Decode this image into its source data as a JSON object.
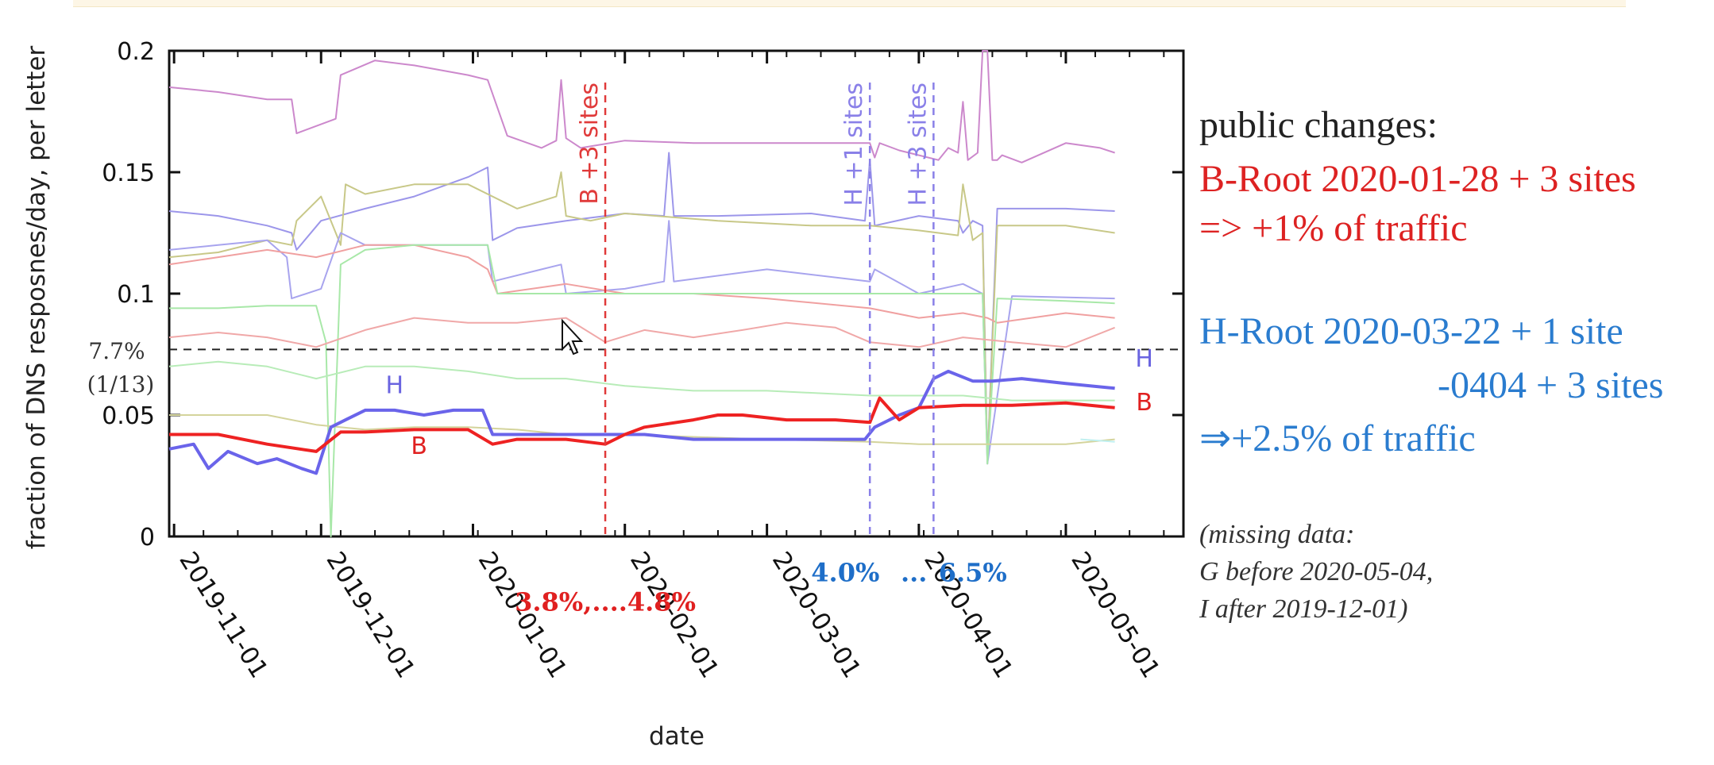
{
  "chart_data": {
    "type": "line",
    "ylabel": "fraction of DNS resposnes/day, per letter",
    "xlabel": "date",
    "ylim": [
      0,
      0.2
    ],
    "yticks": [
      {
        "value": 0,
        "label": "0"
      },
      {
        "value": 0.05,
        "label": "0.05"
      },
      {
        "value": 0.1,
        "label": "0.1"
      },
      {
        "value": 0.15,
        "label": "0.15"
      },
      {
        "value": 0.2,
        "label": "0.2"
      }
    ],
    "xlim": [
      "2019-10-31",
      "2020-05-25"
    ],
    "xticks": [
      "2019-11-01",
      "2019-12-01",
      "2020-01-01",
      "2020-02-01",
      "2020-03-01",
      "2020-04-01",
      "2020-05-01"
    ],
    "grid": false,
    "reference_line": {
      "value": 0.077,
      "label_top": "7.7%",
      "label_bottom": "(1/13)"
    },
    "events": [
      {
        "date": "2020-01-28",
        "label": "B +3 sites",
        "color": "#e03a3a"
      },
      {
        "date": "2020-03-22",
        "label": "H +1 sites",
        "color": "#8a80e8"
      },
      {
        "date": "2020-04-04",
        "label": "H +3 sites",
        "color": "#8a80e8"
      }
    ],
    "annotations": [
      {
        "text": "3.8%,....4.8%",
        "color": "#e02020",
        "date": "2020-01-28",
        "y": -0.0305
      },
      {
        "text": "4.0%",
        "color": "#1e6ec8",
        "date": "2020-03-17",
        "y": -0.0185
      },
      {
        "text": "...",
        "color": "#1e6ec8",
        "date": "2020-03-31",
        "y": -0.0185
      },
      {
        "text": "6.5%",
        "color": "#1e6ec8",
        "date": "2020-04-12",
        "y": -0.0185
      }
    ],
    "series_labels": [
      {
        "text": "H",
        "color": "#6a64e0",
        "date": "2019-12-16",
        "y": 0.059
      },
      {
        "text": "B",
        "color": "#e02020",
        "date": "2019-12-21",
        "y": 0.034
      },
      {
        "text": "H",
        "color": "#6a64e0",
        "date": "2020-05-17",
        "y": 0.07
      },
      {
        "text": "B",
        "color": "#e02020",
        "date": "2020-05-17",
        "y": 0.052
      }
    ],
    "series": [
      {
        "color": "#cc88cc",
        "width": 2,
        "x": [
          "2019-10-31",
          "2019-11-10",
          "2019-11-20",
          "2019-11-25",
          "2019-11-26",
          "2019-12-04",
          "2019-12-05",
          "2019-12-12",
          "2019-12-20",
          "2019-12-31",
          "2020-01-04",
          "2020-01-08",
          "2020-01-15",
          "2020-01-18",
          "2020-01-19",
          "2020-01-20",
          "2020-01-23",
          "2020-02-01",
          "2020-02-15",
          "2020-03-01",
          "2020-03-22",
          "2020-03-23",
          "2020-03-24",
          "2020-03-28",
          "2020-04-05",
          "2020-04-07",
          "2020-04-09",
          "2020-04-10",
          "2020-04-11",
          "2020-04-13",
          "2020-04-14",
          "2020-04-15",
          "2020-04-16",
          "2020-04-17",
          "2020-04-18",
          "2020-04-22",
          "2020-05-01",
          "2020-05-08",
          "2020-05-11"
        ],
        "y": [
          0.185,
          0.183,
          0.18,
          0.18,
          0.166,
          0.172,
          0.19,
          0.196,
          0.194,
          0.19,
          0.188,
          0.165,
          0.16,
          0.163,
          0.188,
          0.164,
          0.16,
          0.163,
          0.162,
          0.162,
          0.162,
          0.156,
          0.162,
          0.159,
          0.155,
          0.16,
          0.158,
          0.179,
          0.155,
          0.158,
          0.2,
          0.2,
          0.155,
          0.155,
          0.157,
          0.154,
          0.162,
          0.16,
          0.158
        ]
      },
      {
        "color": "#9c96ea",
        "width": 2,
        "x": [
          "2019-10-31",
          "2019-11-10",
          "2019-11-20",
          "2019-11-25",
          "2019-11-26",
          "2019-12-01",
          "2019-12-10",
          "2019-12-20",
          "2019-12-31",
          "2020-01-04",
          "2020-01-05",
          "2020-01-10",
          "2020-01-20",
          "2020-02-01",
          "2020-02-09",
          "2020-02-10",
          "2020-02-11",
          "2020-02-20",
          "2020-03-10",
          "2020-03-21",
          "2020-03-22",
          "2020-03-23",
          "2020-04-01",
          "2020-04-09",
          "2020-04-10",
          "2020-04-12",
          "2020-04-14",
          "2020-04-15",
          "2020-04-17",
          "2020-05-01",
          "2020-05-11"
        ],
        "y": [
          0.134,
          0.132,
          0.128,
          0.125,
          0.118,
          0.13,
          0.135,
          0.14,
          0.148,
          0.152,
          0.122,
          0.127,
          0.13,
          0.133,
          0.132,
          0.158,
          0.132,
          0.132,
          0.133,
          0.13,
          0.155,
          0.128,
          0.132,
          0.13,
          0.125,
          0.13,
          0.128,
          0.03,
          0.135,
          0.135,
          0.134
        ]
      },
      {
        "color": "#c8c888",
        "width": 2,
        "x": [
          "2019-10-31",
          "2019-11-10",
          "2019-11-20",
          "2019-11-25",
          "2019-11-26",
          "2019-12-01",
          "2019-12-05",
          "2019-12-06",
          "2019-12-10",
          "2019-12-20",
          "2019-12-31",
          "2020-01-10",
          "2020-01-18",
          "2020-01-19",
          "2020-01-20",
          "2020-01-25",
          "2020-02-01",
          "2020-02-20",
          "2020-03-10",
          "2020-03-22",
          "2020-04-01",
          "2020-04-09",
          "2020-04-10",
          "2020-04-12",
          "2020-04-14",
          "2020-04-15",
          "2020-04-17",
          "2020-05-01",
          "2020-05-11"
        ],
        "y": [
          0.115,
          0.117,
          0.122,
          0.12,
          0.13,
          0.14,
          0.12,
          0.145,
          0.141,
          0.145,
          0.145,
          0.135,
          0.14,
          0.15,
          0.132,
          0.13,
          0.133,
          0.13,
          0.128,
          0.128,
          0.126,
          0.124,
          0.145,
          0.122,
          0.125,
          0.03,
          0.128,
          0.128,
          0.125
        ]
      },
      {
        "color": "#a8a4ee",
        "width": 2,
        "x": [
          "2019-10-31",
          "2019-11-10",
          "2019-11-20",
          "2019-11-24",
          "2019-11-25",
          "2019-12-01",
          "2019-12-05",
          "2019-12-10",
          "2019-12-20",
          "2019-12-31",
          "2020-01-04",
          "2020-01-05",
          "2020-01-15",
          "2020-01-19",
          "2020-01-20",
          "2020-02-01",
          "2020-02-09",
          "2020-02-10",
          "2020-02-11",
          "2020-03-01",
          "2020-03-22",
          "2020-03-23",
          "2020-04-01",
          "2020-04-10",
          "2020-04-14",
          "2020-04-15",
          "2020-04-20",
          "2020-05-11"
        ],
        "y": [
          0.118,
          0.12,
          0.122,
          0.115,
          0.098,
          0.102,
          0.125,
          0.12,
          0.12,
          0.12,
          0.12,
          0.105,
          0.11,
          0.112,
          0.1,
          0.102,
          0.105,
          0.13,
          0.105,
          0.11,
          0.105,
          0.11,
          0.1,
          0.104,
          0.1,
          0.03,
          0.099,
          0.098
        ]
      },
      {
        "color": "#f0a0a0",
        "width": 2,
        "x": [
          "2019-10-31",
          "2019-11-10",
          "2019-11-20",
          "2019-11-30",
          "2019-12-10",
          "2019-12-20",
          "2019-12-31",
          "2020-01-04",
          "2020-01-06",
          "2020-01-20",
          "2020-02-01",
          "2020-02-15",
          "2020-03-01",
          "2020-03-22",
          "2020-04-01",
          "2020-04-10",
          "2020-04-15",
          "2020-04-17",
          "2020-05-01",
          "2020-05-11"
        ],
        "y": [
          0.112,
          0.115,
          0.118,
          0.115,
          0.12,
          0.12,
          0.115,
          0.11,
          0.1,
          0.104,
          0.1,
          0.1,
          0.098,
          0.094,
          0.09,
          0.092,
          0.09,
          0.088,
          0.092,
          0.09
        ]
      },
      {
        "color": "#a8e8a8",
        "width": 2,
        "x": [
          "2019-10-31",
          "2019-11-10",
          "2019-11-20",
          "2019-11-30",
          "2019-12-02",
          "2019-12-03",
          "2019-12-05",
          "2019-12-10",
          "2019-12-20",
          "2019-12-31",
          "2020-01-04",
          "2020-01-06",
          "2020-01-20",
          "2020-02-01",
          "2020-02-15",
          "2020-03-01",
          "2020-03-22",
          "2020-04-01",
          "2020-04-10",
          "2020-04-14",
          "2020-04-15",
          "2020-04-17",
          "2020-05-01",
          "2020-05-11"
        ],
        "y": [
          0.094,
          0.094,
          0.095,
          0.095,
          0.08,
          0.0,
          0.112,
          0.118,
          0.12,
          0.12,
          0.12,
          0.1,
          0.1,
          0.1,
          0.1,
          0.1,
          0.1,
          0.1,
          0.1,
          0.1,
          0.03,
          0.098,
          0.097,
          0.096
        ]
      },
      {
        "color": "#f0a8a8",
        "width": 2,
        "x": [
          "2019-10-31",
          "2019-11-10",
          "2019-11-20",
          "2019-11-30",
          "2019-12-10",
          "2019-12-20",
          "2019-12-31",
          "2020-01-10",
          "2020-01-20",
          "2020-01-28",
          "2020-02-05",
          "2020-02-15",
          "2020-02-25",
          "2020-03-05",
          "2020-03-15",
          "2020-03-22",
          "2020-04-01",
          "2020-04-10",
          "2020-04-20",
          "2020-05-01",
          "2020-05-11"
        ],
        "y": [
          0.082,
          0.084,
          0.082,
          0.078,
          0.085,
          0.09,
          0.088,
          0.088,
          0.09,
          0.08,
          0.085,
          0.082,
          0.085,
          0.088,
          0.086,
          0.08,
          0.078,
          0.082,
          0.08,
          0.078,
          0.086
        ]
      },
      {
        "color": "#b8ecb8",
        "width": 2,
        "x": [
          "2019-10-31",
          "2019-11-10",
          "2019-11-20",
          "2019-11-30",
          "2019-12-10",
          "2019-12-20",
          "2019-12-31",
          "2020-01-10",
          "2020-01-20",
          "2020-02-01",
          "2020-02-15",
          "2020-03-01",
          "2020-03-22",
          "2020-04-01",
          "2020-04-10",
          "2020-04-20",
          "2020-05-01",
          "2020-05-11"
        ],
        "y": [
          0.07,
          0.072,
          0.07,
          0.065,
          0.07,
          0.07,
          0.068,
          0.065,
          0.065,
          0.062,
          0.06,
          0.06,
          0.058,
          0.058,
          0.058,
          0.056,
          0.056,
          0.056
        ]
      },
      {
        "color": "#d4d49c",
        "width": 2,
        "x": [
          "2019-10-31",
          "2019-11-10",
          "2019-11-20",
          "2019-11-30",
          "2019-12-10",
          "2019-12-20",
          "2019-12-31",
          "2020-01-10",
          "2020-01-20",
          "2020-02-01",
          "2020-02-15",
          "2020-03-01",
          "2020-03-22",
          "2020-04-01",
          "2020-04-10",
          "2020-04-20",
          "2020-05-01",
          "2020-05-11"
        ],
        "y": [
          0.05,
          0.05,
          0.05,
          0.046,
          0.044,
          0.045,
          0.045,
          0.044,
          0.042,
          0.042,
          0.041,
          0.04,
          0.039,
          0.038,
          0.038,
          0.038,
          0.038,
          0.04
        ]
      },
      {
        "color": "#c0f0f0",
        "width": 2,
        "x": [
          "2020-05-04",
          "2020-05-11"
        ],
        "y": [
          0.04,
          0.039
        ]
      },
      {
        "color": "#6a64ea",
        "width": 4,
        "x": [
          "2019-10-31",
          "2019-11-05",
          "2019-11-08",
          "2019-11-12",
          "2019-11-18",
          "2019-11-22",
          "2019-11-27",
          "2019-11-30",
          "2019-12-03",
          "2019-12-06",
          "2019-12-10",
          "2019-12-16",
          "2019-12-22",
          "2019-12-28",
          "2020-01-03",
          "2020-01-05",
          "2020-01-10",
          "2020-01-20",
          "2020-01-28",
          "2020-02-05",
          "2020-02-15",
          "2020-02-25",
          "2020-03-05",
          "2020-03-15",
          "2020-03-21",
          "2020-03-23",
          "2020-03-28",
          "2020-04-01",
          "2020-04-04",
          "2020-04-07",
          "2020-04-12",
          "2020-04-16",
          "2020-04-22",
          "2020-05-01",
          "2020-05-11"
        ],
        "y": [
          0.036,
          0.038,
          0.028,
          0.035,
          0.03,
          0.032,
          0.028,
          0.026,
          0.045,
          0.048,
          0.052,
          0.052,
          0.05,
          0.052,
          0.052,
          0.042,
          0.042,
          0.042,
          0.042,
          0.042,
          0.04,
          0.04,
          0.04,
          0.04,
          0.04,
          0.045,
          0.05,
          0.053,
          0.065,
          0.068,
          0.064,
          0.064,
          0.065,
          0.063,
          0.061
        ]
      },
      {
        "color": "#ee2222",
        "width": 4,
        "x": [
          "2019-10-31",
          "2019-11-10",
          "2019-11-20",
          "2019-11-30",
          "2019-12-05",
          "2019-12-10",
          "2019-12-20",
          "2019-12-31",
          "2020-01-05",
          "2020-01-10",
          "2020-01-20",
          "2020-01-28",
          "2020-02-01",
          "2020-02-05",
          "2020-02-15",
          "2020-02-20",
          "2020-02-25",
          "2020-03-05",
          "2020-03-15",
          "2020-03-22",
          "2020-03-24",
          "2020-03-28",
          "2020-04-01",
          "2020-04-10",
          "2020-04-20",
          "2020-05-01",
          "2020-05-11"
        ],
        "y": [
          0.042,
          0.042,
          0.038,
          0.035,
          0.043,
          0.043,
          0.044,
          0.044,
          0.038,
          0.04,
          0.04,
          0.038,
          0.042,
          0.045,
          0.048,
          0.05,
          0.05,
          0.048,
          0.048,
          0.047,
          0.057,
          0.048,
          0.053,
          0.054,
          0.054,
          0.055,
          0.053
        ]
      }
    ]
  },
  "notes": {
    "heading": "public changes:",
    "b_root_line1": "B-Root 2020-01-28 + 3 sites",
    "b_root_line2": "=> +1% of traffic",
    "h_root_line1": "H-Root 2020-03-22 + 1 site",
    "h_root_line2": "-0404 + 3 sites",
    "h_root_line3": "⇒+2.5% of traffic",
    "missing_line1": "(missing data:",
    "missing_line2": "G before 2020-05-04,",
    "missing_line3": "I after 2019-12-01)"
  }
}
